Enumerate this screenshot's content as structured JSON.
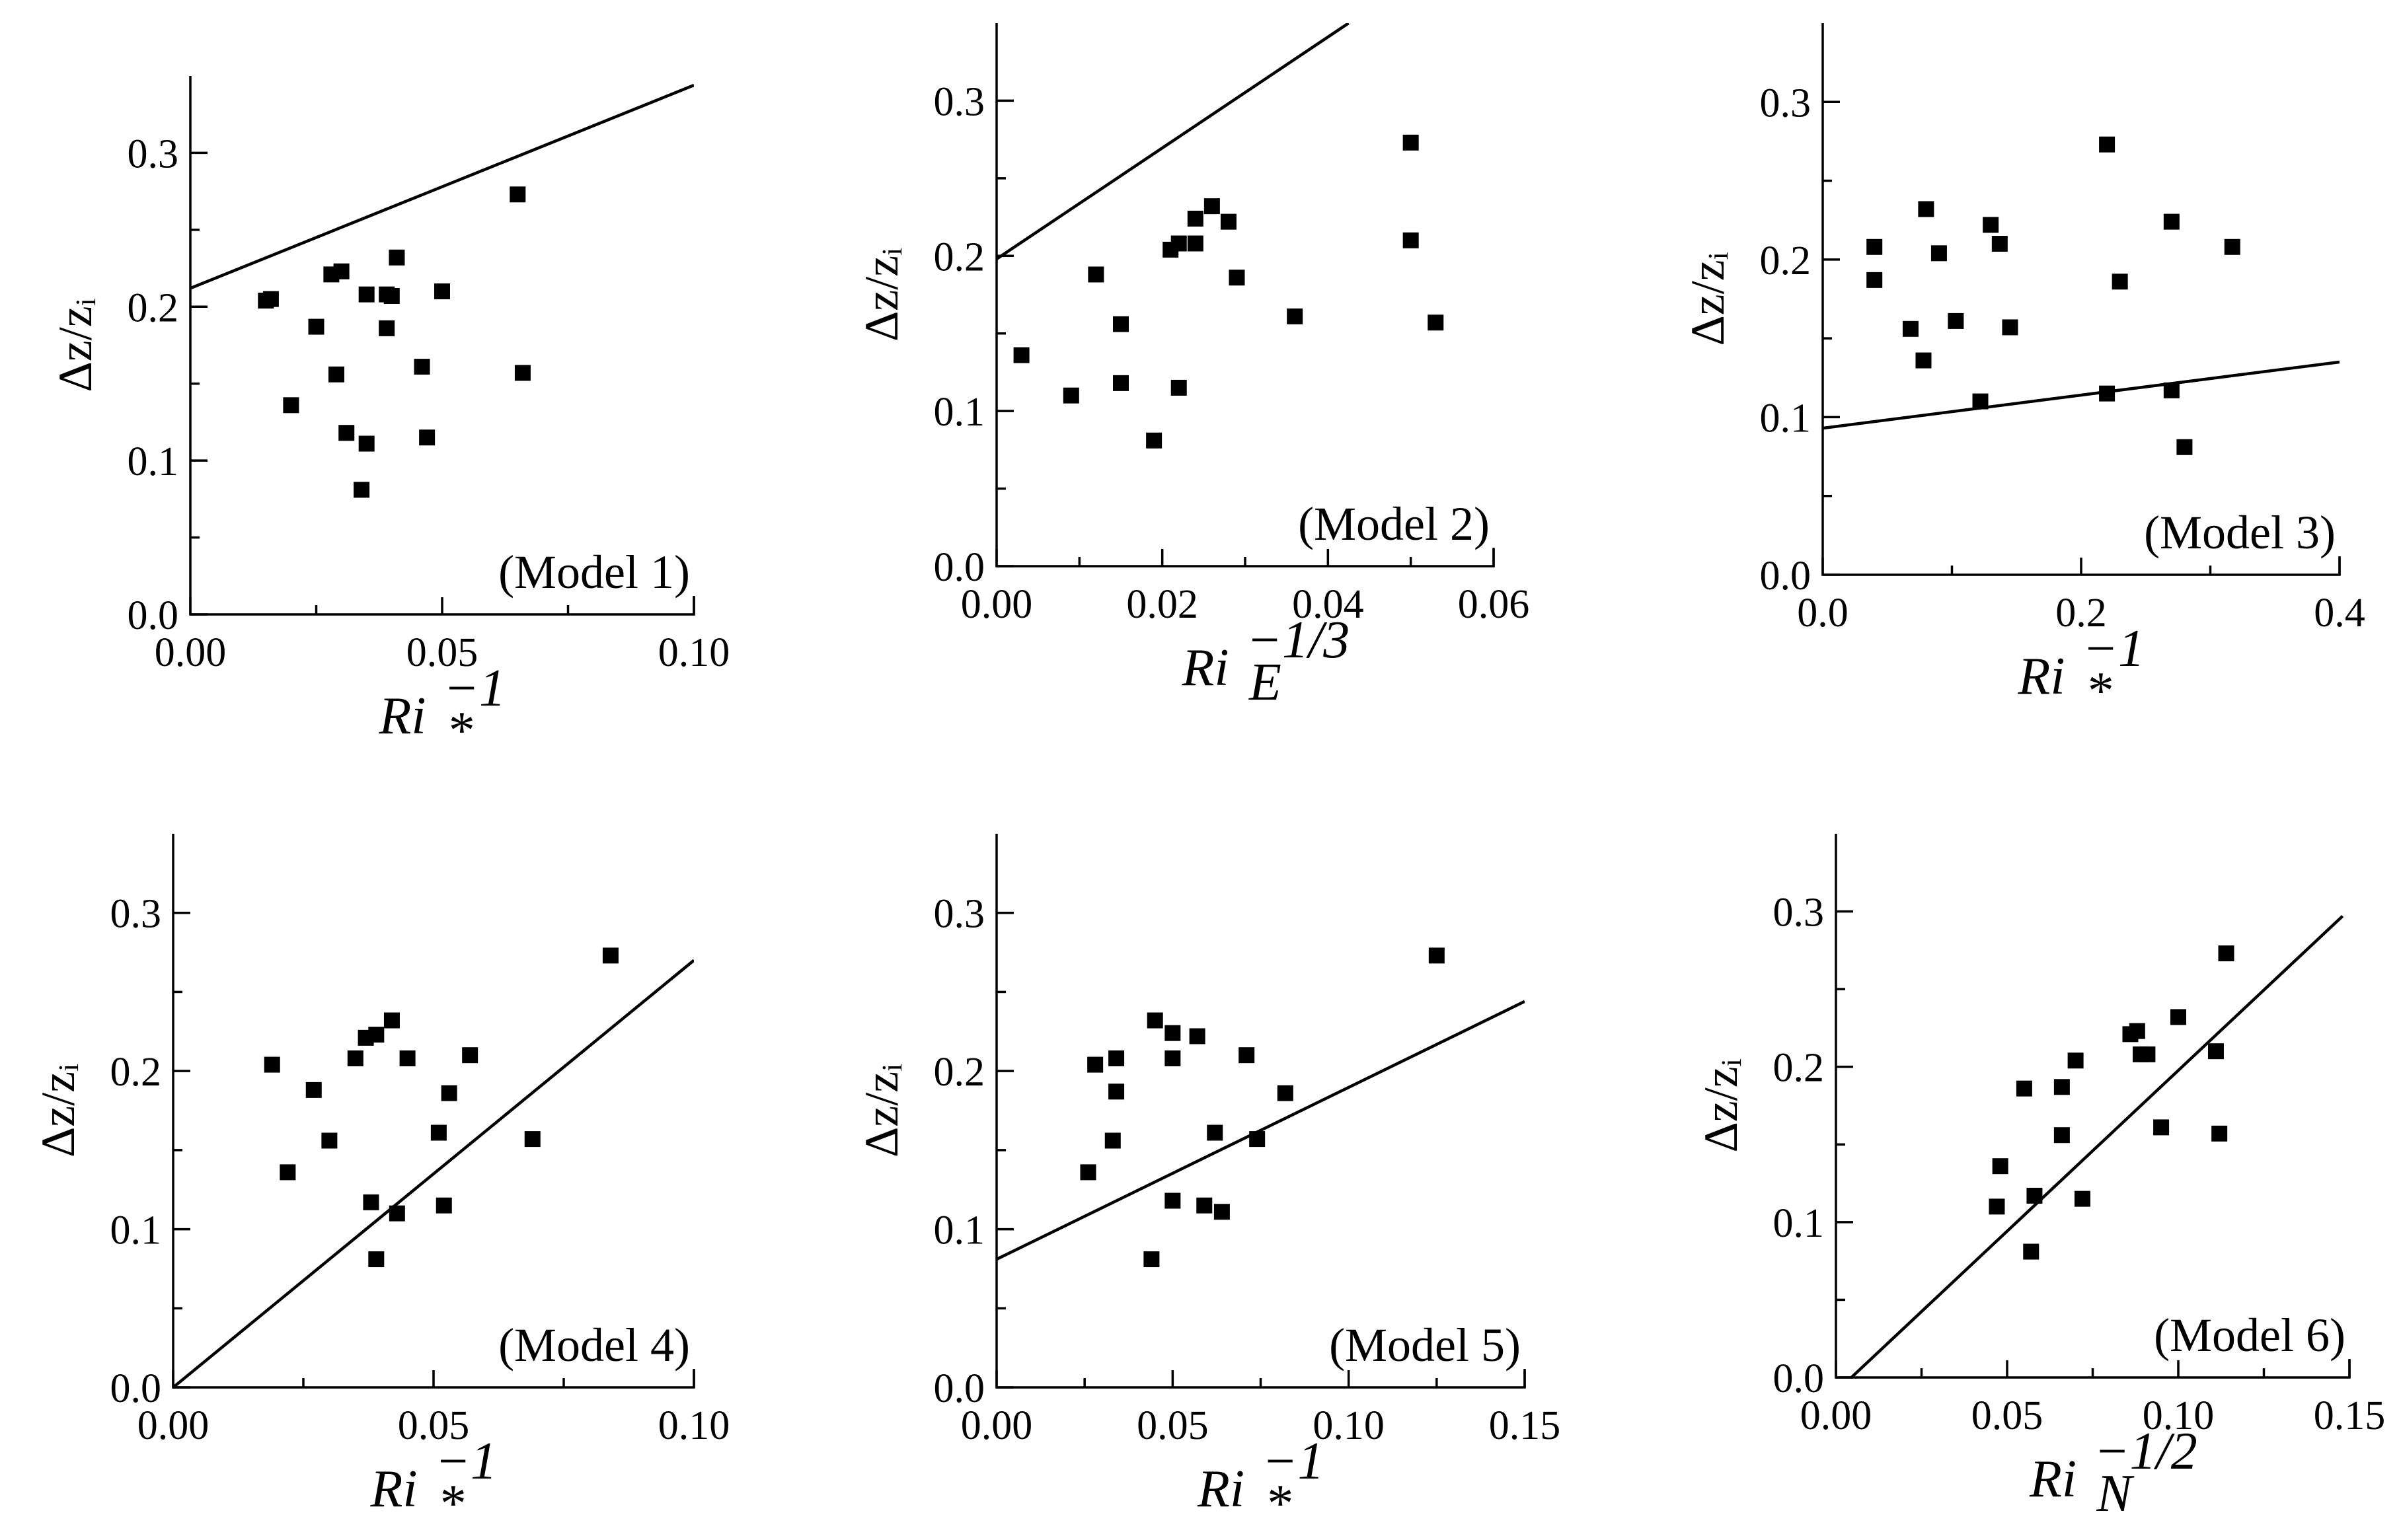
{
  "chart_data": [
    {
      "type": "scatter",
      "title": "",
      "model_label": "(Model 1)",
      "xlabel_base": "Ri",
      "xlabel_sub": "*",
      "xlabel_sup": "−1",
      "ylabel": "Δz/zᵢ",
      "xlim": [
        0,
        0.1
      ],
      "ylim": [
        0,
        0.35
      ],
      "xticks": [
        "0.00",
        "0.05",
        "0.10"
      ],
      "xtick_values": [
        0,
        0.05,
        0.1
      ],
      "yticks": [
        "0.0",
        "0.1",
        "0.2",
        "0.3"
      ],
      "ytick_values": [
        0,
        0.1,
        0.2,
        0.3
      ],
      "x": [
        0.015,
        0.016,
        0.02,
        0.025,
        0.028,
        0.029,
        0.03,
        0.031,
        0.034,
        0.035,
        0.035,
        0.039,
        0.039,
        0.04,
        0.041,
        0.046,
        0.047,
        0.05,
        0.065,
        0.066
      ],
      "y": [
        0.204,
        0.205,
        0.136,
        0.187,
        0.221,
        0.156,
        0.223,
        0.118,
        0.081,
        0.208,
        0.111,
        0.208,
        0.186,
        0.207,
        0.232,
        0.161,
        0.115,
        0.21,
        0.273,
        0.157
      ],
      "fit_line": {
        "x": [
          0,
          0.1
        ],
        "y": [
          0.212,
          0.344
        ]
      }
    },
    {
      "type": "scatter",
      "title": "",
      "model_label": "(Model 2)",
      "xlabel_base": "Ri",
      "xlabel_sub": "E",
      "xlabel_sup": "−1/3",
      "ylabel": "Δz/zᵢ",
      "xlim": [
        0,
        0.06
      ],
      "ylim": [
        0,
        0.35
      ],
      "xticks": [
        "0.00",
        "0.02",
        "0.04",
        "0.06"
      ],
      "xtick_values": [
        0,
        0.02,
        0.04,
        0.06
      ],
      "yticks": [
        "0.0",
        "0.1",
        "0.2",
        "0.3"
      ],
      "ytick_values": [
        0,
        0.1,
        0.2,
        0.3
      ],
      "x": [
        0.003,
        0.009,
        0.012,
        0.015,
        0.015,
        0.019,
        0.021,
        0.022,
        0.022,
        0.024,
        0.024,
        0.026,
        0.028,
        0.029,
        0.036,
        0.05,
        0.05,
        0.053
      ],
      "y": [
        0.136,
        0.11,
        0.188,
        0.156,
        0.118,
        0.081,
        0.204,
        0.208,
        0.115,
        0.208,
        0.224,
        0.232,
        0.222,
        0.186,
        0.161,
        0.273,
        0.21,
        0.157
      ],
      "fit_line": {
        "x": [
          0,
          0.0425
        ],
        "y": [
          0.198,
          0.35
        ]
      }
    },
    {
      "type": "scatter",
      "title": "",
      "model_label": "(Model 3)",
      "xlabel_base": "Ri",
      "xlabel_sub": "*",
      "xlabel_sup": "−1",
      "ylabel": "Δz/zᵢ",
      "xlim": [
        0,
        0.4
      ],
      "ylim": [
        0,
        0.35
      ],
      "xticks": [
        "0.0",
        "0.2",
        "0.4"
      ],
      "xtick_values": [
        0,
        0.2,
        0.4
      ],
      "yticks": [
        "0.0",
        "0.1",
        "0.2",
        "0.3"
      ],
      "ytick_values": [
        0,
        0.1,
        0.2,
        0.3
      ],
      "x": [
        0.04,
        0.04,
        0.068,
        0.078,
        0.08,
        0.09,
        0.103,
        0.122,
        0.13,
        0.137,
        0.145,
        0.22,
        0.22,
        0.23,
        0.27,
        0.27,
        0.28,
        0.317
      ],
      "y": [
        0.208,
        0.187,
        0.156,
        0.136,
        0.232,
        0.204,
        0.161,
        0.11,
        0.222,
        0.21,
        0.157,
        0.273,
        0.115,
        0.186,
        0.224,
        0.117,
        0.081,
        0.208
      ],
      "fit_line": {
        "x": [
          0,
          0.4
        ],
        "y": [
          0.093,
          0.135
        ]
      }
    },
    {
      "type": "scatter",
      "title": "",
      "model_label": "(Model 4)",
      "xlabel_base": "Ri",
      "xlabel_sub": "*",
      "xlabel_sup": "−1",
      "ylabel": "Δz/zᵢ",
      "xlim": [
        0,
        0.1
      ],
      "ylim": [
        0,
        0.35
      ],
      "xticks": [
        "0.00",
        "0.05",
        "0.10"
      ],
      "xtick_values": [
        0,
        0.05,
        0.1
      ],
      "yticks": [
        "0.0",
        "0.1",
        "0.2",
        "0.3"
      ],
      "ytick_values": [
        0,
        0.1,
        0.2,
        0.3
      ],
      "x": [
        0.019,
        0.022,
        0.027,
        0.03,
        0.035,
        0.037,
        0.038,
        0.039,
        0.039,
        0.042,
        0.043,
        0.045,
        0.051,
        0.052,
        0.053,
        0.057,
        0.069,
        0.084
      ],
      "y": [
        0.204,
        0.136,
        0.188,
        0.156,
        0.208,
        0.221,
        0.117,
        0.223,
        0.081,
        0.232,
        0.11,
        0.208,
        0.161,
        0.115,
        0.186,
        0.21,
        0.157,
        0.273
      ],
      "fit_line": {
        "x": [
          0,
          0.1
        ],
        "y": [
          0,
          0.27
        ]
      }
    },
    {
      "type": "scatter",
      "title": "",
      "model_label": "(Model 5)",
      "xlabel_base": "Ri",
      "xlabel_sub": "*",
      "xlabel_sup": "−1",
      "ylabel": "Δz/zᵢ",
      "xlim": [
        0,
        0.15
      ],
      "ylim": [
        0,
        0.35
      ],
      "xticks": [
        "0.00",
        "0.05",
        "0.10",
        "0.15"
      ],
      "xtick_values": [
        0,
        0.05,
        0.1,
        0.15
      ],
      "yticks": [
        "0.0",
        "0.1",
        "0.2",
        "0.3"
      ],
      "ytick_values": [
        0,
        0.1,
        0.2,
        0.3
      ],
      "x": [
        0.026,
        0.028,
        0.033,
        0.034,
        0.034,
        0.044,
        0.045,
        0.05,
        0.05,
        0.05,
        0.057,
        0.059,
        0.062,
        0.064,
        0.071,
        0.074,
        0.082,
        0.125
      ],
      "y": [
        0.136,
        0.204,
        0.156,
        0.208,
        0.187,
        0.081,
        0.232,
        0.224,
        0.208,
        0.118,
        0.222,
        0.115,
        0.161,
        0.111,
        0.21,
        0.157,
        0.186,
        0.273
      ],
      "fit_line": {
        "x": [
          0,
          0.15
        ],
        "y": [
          0.081,
          0.244
        ]
      }
    },
    {
      "type": "scatter",
      "title": "",
      "model_label": "(Model 6)",
      "xlabel_base": "Ri",
      "xlabel_sub": "N",
      "xlabel_sup": "−1/2",
      "ylabel": "Δz/zᵢ",
      "xlim": [
        0,
        0.15
      ],
      "ylim": [
        0,
        0.35
      ],
      "xticks": [
        "0.00",
        "0.05",
        "0.10",
        "0.15"
      ],
      "xtick_values": [
        0,
        0.05,
        0.1,
        0.15
      ],
      "yticks": [
        "0.0",
        "0.1",
        "0.2",
        "0.3"
      ],
      "ytick_values": [
        0,
        0.1,
        0.2,
        0.3
      ],
      "x": [
        0.047,
        0.048,
        0.055,
        0.057,
        0.058,
        0.066,
        0.066,
        0.07,
        0.072,
        0.086,
        0.088,
        0.089,
        0.091,
        0.095,
        0.1,
        0.111,
        0.112,
        0.114
      ],
      "y": [
        0.11,
        0.136,
        0.186,
        0.081,
        0.117,
        0.187,
        0.156,
        0.204,
        0.115,
        0.221,
        0.223,
        0.208,
        0.208,
        0.161,
        0.232,
        0.21,
        0.157,
        0.273
      ],
      "fit_line": {
        "x": [
          0.0045,
          0.148
        ],
        "y": [
          0,
          0.297
        ]
      }
    }
  ]
}
